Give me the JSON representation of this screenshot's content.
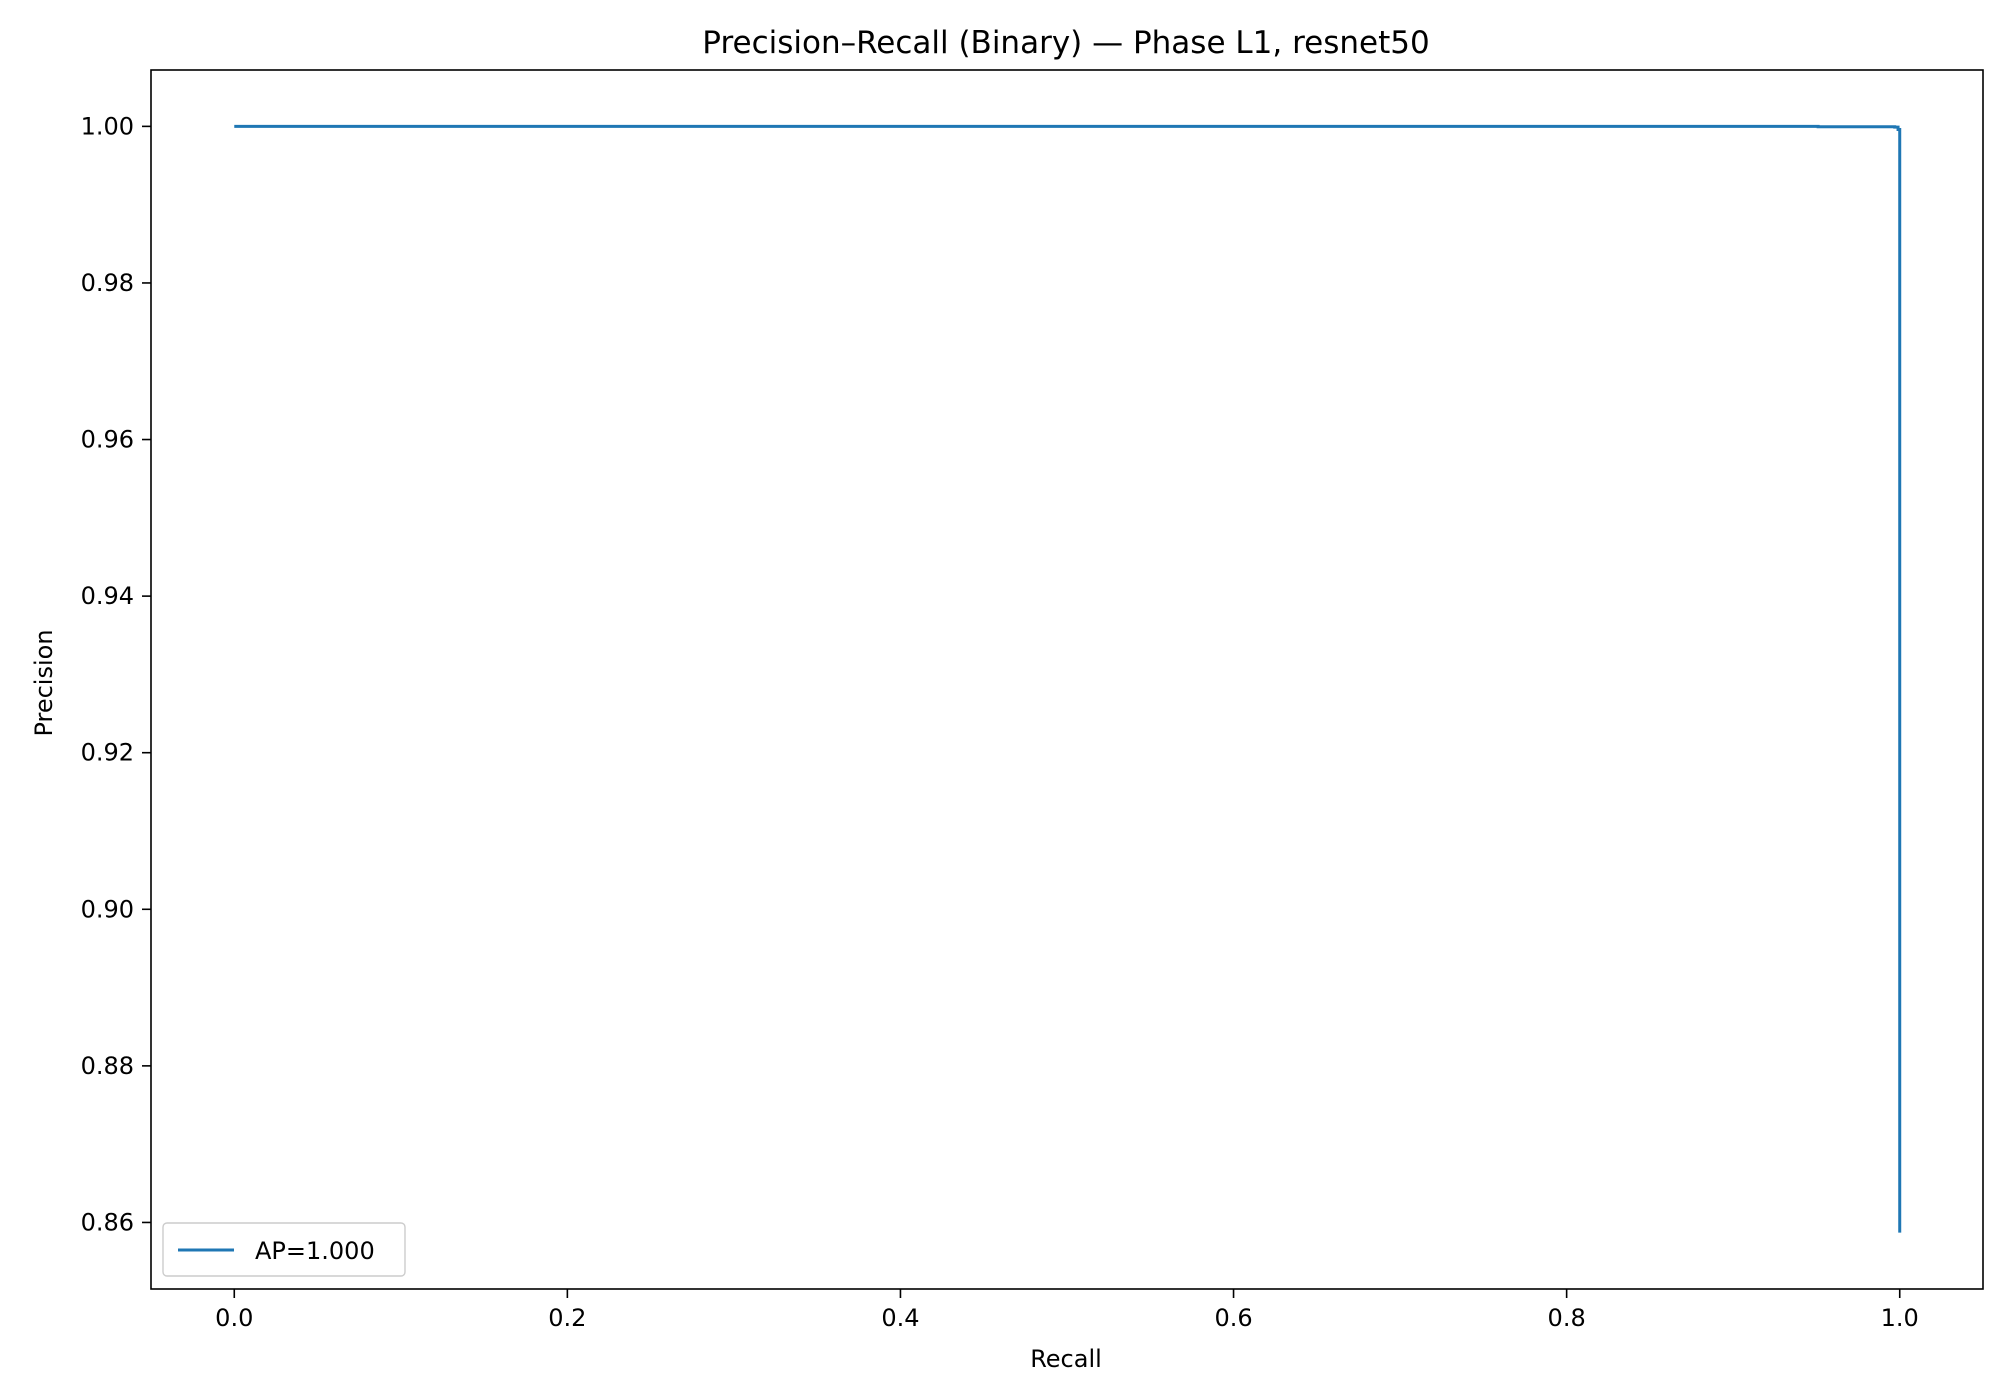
{
  "chart_data": {
    "type": "line",
    "title": "Precision–Recall (Binary) — Phase L1, resnet50",
    "xlabel": "Recall",
    "ylabel": "Precision",
    "xlim": [
      -0.05,
      1.05
    ],
    "ylim": [
      0.8515,
      1.0072
    ],
    "xticks": [
      0.0,
      0.2,
      0.4,
      0.6,
      0.8,
      1.0
    ],
    "xtick_labels": [
      "0.0",
      "0.2",
      "0.4",
      "0.6",
      "0.8",
      "1.0"
    ],
    "yticks": [
      0.86,
      0.88,
      0.9,
      0.92,
      0.94,
      0.96,
      0.98,
      1.0
    ],
    "ytick_labels": [
      "0.86",
      "0.88",
      "0.90",
      "0.92",
      "0.94",
      "0.96",
      "0.98",
      "1.00"
    ],
    "grid": false,
    "legend_position": "lower-left",
    "series": [
      {
        "name": "AP=1.000",
        "color": "#1f77b4",
        "x": [
          0.0,
          0.951,
          0.951,
          0.997,
          0.997,
          0.999,
          0.999,
          1.0,
          1.0,
          1.0
        ],
        "y": [
          1.0,
          1.0,
          0.99995,
          0.99995,
          0.9999,
          0.9999,
          0.9996,
          0.9996,
          0.9966,
          0.8587
        ]
      }
    ]
  }
}
